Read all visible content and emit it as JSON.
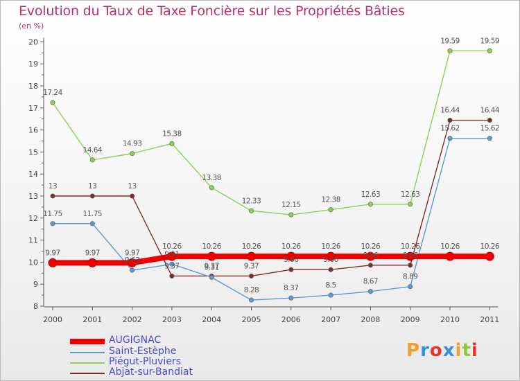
{
  "header": {
    "title": "Evolution du Taux de Taxe Foncière sur les Propriétés Bâties",
    "subtitle": "(en %)"
  },
  "chart_data": {
    "type": "line",
    "title": "Evolution du Taux de Taxe Foncière sur les Propriétés Bâties",
    "subtitle": "(en %)",
    "x": [
      "2000",
      "2001",
      "2002",
      "2003",
      "2004",
      "2005",
      "2006",
      "2007",
      "2008",
      "2009",
      "2010",
      "2011"
    ],
    "yticks": [
      "8",
      "9",
      "10",
      "11",
      "12",
      "13",
      "14",
      "15",
      "16",
      "17",
      "18",
      "19",
      "20"
    ],
    "ylim": [
      8,
      20
    ],
    "grid": false,
    "legend_position": "bottom-left",
    "series": [
      {
        "name": "AUGIGNAC",
        "color": "#ee0000",
        "values": [
          9.97,
          9.97,
          9.97,
          10.26,
          10.26,
          10.26,
          10.26,
          10.26,
          10.26,
          10.26,
          10.26,
          10.26
        ],
        "labels": [
          "9.97",
          "9.97",
          "9.97",
          "10.26",
          "10.26",
          "10.26",
          "10.26",
          "10.26",
          "10.26",
          "10.26",
          "10.26",
          "10.26"
        ]
      },
      {
        "name": "Saint-Estèphe",
        "color": "#5b9bd5",
        "values": [
          11.75,
          11.75,
          9.63,
          9.91,
          9.31,
          8.28,
          8.37,
          8.5,
          8.67,
          8.89,
          15.62,
          15.62
        ],
        "labels": [
          "11.75",
          "11.75",
          "9.63",
          "9.91",
          "9.31",
          "8.28",
          "8.37",
          "8.5",
          "8.67",
          "8.89",
          "15.62",
          "15.62"
        ]
      },
      {
        "name": "Piégut-Pluviers",
        "color": "#8fd14f",
        "values": [
          17.24,
          14.64,
          14.93,
          15.38,
          13.38,
          12.33,
          12.15,
          12.38,
          12.63,
          12.63,
          19.59,
          19.59
        ],
        "labels": [
          "17.24",
          "14.64",
          "14.93",
          "15.38",
          "13.38",
          "12.33",
          "12.15",
          "12.38",
          "12.63",
          "12.63",
          "19.59",
          "19.59"
        ]
      },
      {
        "name": "Abjat-sur-Bandiat",
        "color": "#7b2c2c",
        "values": [
          13,
          13,
          13,
          9.37,
          9.37,
          9.37,
          9.66,
          9.66,
          9.86,
          9.86,
          16.44,
          16.44
        ],
        "labels": [
          "13",
          "13",
          "13",
          "9.37",
          "9.37",
          "9.37",
          "9.66",
          "9.66",
          "9.86",
          "9.86",
          "16.44",
          "16.44"
        ]
      }
    ]
  },
  "legend": {
    "items": [
      {
        "label": "AUGIGNAC",
        "color": "#ee0000"
      },
      {
        "label": "Saint-Estèphe",
        "color": "#5b9bd5"
      },
      {
        "label": "Piégut-Pluviers",
        "color": "#8fd14f"
      },
      {
        "label": "Abjat-sur-Bandiat",
        "color": "#7b2c2c"
      }
    ]
  },
  "logo": {
    "text": "Proxiti",
    "colors": [
      "#f0a030",
      "#3a8fd8",
      "#e8342a",
      "#3a8fd8",
      "#f0a030",
      "#8fc63f",
      "#e8342a"
    ]
  }
}
